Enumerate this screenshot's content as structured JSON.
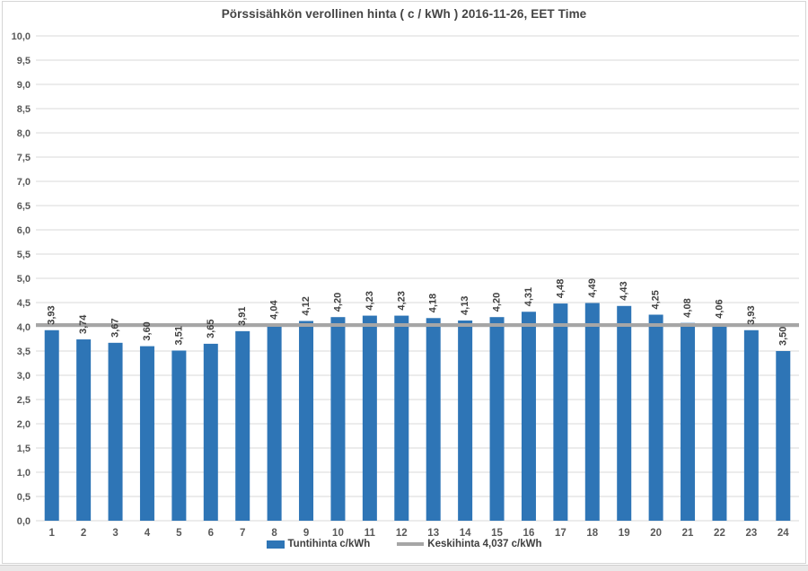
{
  "chart_data": {
    "type": "bar",
    "title": "Pörssisähkön verollinen hinta ( c / kWh ) 2016-11-26, EET Time",
    "categories": [
      "1",
      "2",
      "3",
      "4",
      "5",
      "6",
      "7",
      "8",
      "9",
      "10",
      "11",
      "12",
      "13",
      "14",
      "15",
      "16",
      "17",
      "18",
      "19",
      "20",
      "21",
      "22",
      "23",
      "24"
    ],
    "values": [
      3.93,
      3.74,
      3.67,
      3.6,
      3.51,
      3.65,
      3.91,
      4.04,
      4.12,
      4.2,
      4.23,
      4.23,
      4.18,
      4.13,
      4.2,
      4.31,
      4.48,
      4.49,
      4.43,
      4.25,
      4.08,
      4.06,
      3.93,
      3.5
    ],
    "value_labels": [
      "3,93",
      "3,74",
      "3,67",
      "3,60",
      "3,51",
      "3,65",
      "3,91",
      "4,04",
      "4,12",
      "4,20",
      "4,23",
      "4,23",
      "4,18",
      "4,13",
      "4,20",
      "4,31",
      "4,48",
      "4,49",
      "4,43",
      "4,25",
      "4,08",
      "4,06",
      "3,93",
      "3,50"
    ],
    "xlabel": "",
    "ylabel": "",
    "ylim": [
      0,
      10
    ],
    "ytick_step": 0.5,
    "ytick_labels": [
      "0,0",
      "0,5",
      "1,0",
      "1,5",
      "2,0",
      "2,5",
      "3,0",
      "3,5",
      "4,0",
      "4,5",
      "5,0",
      "5,5",
      "6,0",
      "6,5",
      "7,0",
      "7,5",
      "8,0",
      "8,5",
      "9,0",
      "9,5",
      "10,0"
    ],
    "grid": true,
    "average_line": {
      "value": 4.037,
      "color": "#a6a6a6"
    },
    "legend_position": "bottom",
    "legend": [
      {
        "label": "Tuntihinta c/kWh",
        "glyph": "rect",
        "color": "#2e75b6"
      },
      {
        "label": "Keskihinta 4,037 c/kWh",
        "glyph": "line",
        "color": "#a6a6a6"
      }
    ],
    "colors": {
      "bar": "#2e75b6",
      "grid": "#d9d9d9",
      "axis_text": "#595959",
      "value_label_text": "#404040",
      "title_text": "#444444"
    }
  }
}
